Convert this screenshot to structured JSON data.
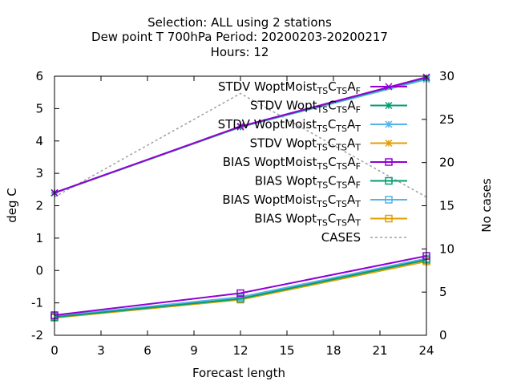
{
  "chart_data": {
    "type": "line",
    "title_lines": [
      "Selection: ALL using     2 stations",
      "Dew point T 700hPa   Period: 20200203-20200217",
      "Hours:  12"
    ],
    "xlabel": "Forecast length",
    "ylabel": "deg C",
    "y2label": "No cases",
    "x_ticks": [
      0,
      3,
      6,
      9,
      12,
      15,
      18,
      21,
      24
    ],
    "y_ticks": [
      -2,
      -1,
      0,
      1,
      2,
      3,
      4,
      5,
      6
    ],
    "y2_ticks": [
      0,
      5,
      10,
      15,
      20,
      25,
      30
    ],
    "xlim": [
      0,
      24
    ],
    "ylim": [
      -2,
      6
    ],
    "y2lim": [
      0,
      30
    ],
    "grid": false,
    "legend_position": "top-right",
    "x": [
      0,
      12,
      24
    ],
    "series": [
      {
        "name": "STDV WoptMoist_{TS}C_{TS}A_{F}",
        "name_main": "STDV WoptMoist",
        "sub1": "TS",
        "mid": "C",
        "sub2": "TS",
        "tail": "A",
        "sub3": "F",
        "values": [
          2.4,
          4.45,
          5.97
        ],
        "color": "#9400d3",
        "marker": "x",
        "axis": "y"
      },
      {
        "name": "STDV Wopt_{TS}C_{TS}A_{F}",
        "name_main": "STDV Wopt",
        "sub1": "TS",
        "mid": "C",
        "sub2": "TS",
        "tail": "A",
        "sub3": "F",
        "values": [
          2.4,
          4.44,
          5.95
        ],
        "color": "#009e73",
        "marker": "star",
        "axis": "y"
      },
      {
        "name": "STDV WoptMoist_{TS}C_{TS}A_{T}",
        "name_main": "STDV WoptMoist",
        "sub1": "TS",
        "mid": "C",
        "sub2": "TS",
        "tail": "A",
        "sub3": "T",
        "values": [
          2.39,
          4.43,
          5.9
        ],
        "color": "#56b4e9",
        "marker": "star",
        "axis": "y"
      },
      {
        "name": "STDV Wopt_{TS}C_{TS}A_{T}",
        "name_main": "STDV Wopt",
        "sub1": "TS",
        "mid": "C",
        "sub2": "TS",
        "tail": "A",
        "sub3": "T",
        "values": [
          2.4,
          4.43,
          5.95
        ],
        "color": "#e69f00",
        "marker": "star",
        "axis": "y"
      },
      {
        "name": "BIAS WoptMoist_{TS}C_{TS}A_{F}",
        "name_main": "BIAS WoptMoist",
        "sub1": "TS",
        "mid": "C",
        "sub2": "TS",
        "tail": "A",
        "sub3": "F",
        "values": [
          -1.38,
          -0.7,
          0.45
        ],
        "color": "#9400d3",
        "marker": "square",
        "axis": "y"
      },
      {
        "name": "BIAS Wopt_{TS}C_{TS}A_{F}",
        "name_main": "BIAS Wopt",
        "sub1": "TS",
        "mid": "C",
        "sub2": "TS",
        "tail": "A",
        "sub3": "F",
        "values": [
          -1.44,
          -0.87,
          0.33
        ],
        "color": "#009e73",
        "marker": "square",
        "axis": "y"
      },
      {
        "name": "BIAS WoptMoist_{TS}C_{TS}A_{T}",
        "name_main": "BIAS WoptMoist",
        "sub1": "TS",
        "mid": "C",
        "sub2": "TS",
        "tail": "A",
        "sub3": "T",
        "values": [
          -1.41,
          -0.82,
          0.37
        ],
        "color": "#56b4e9",
        "marker": "square",
        "axis": "y"
      },
      {
        "name": "BIAS Wopt_{TS}C_{TS}A_{T}",
        "name_main": "BIAS Wopt",
        "sub1": "TS",
        "mid": "C",
        "sub2": "TS",
        "tail": "A",
        "sub3": "T",
        "values": [
          -1.46,
          -0.9,
          0.28
        ],
        "color": "#e69f00",
        "marker": "square",
        "axis": "y"
      },
      {
        "name": "CASES",
        "name_main": "CASES",
        "values": [
          16,
          28,
          16
        ],
        "color": "#a0a0a0",
        "marker": "none",
        "dashed": true,
        "axis": "y2"
      }
    ]
  }
}
